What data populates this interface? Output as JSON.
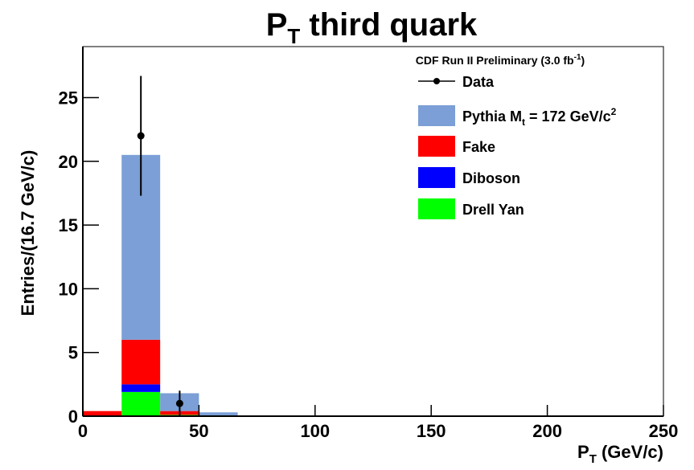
{
  "chart_data": {
    "type": "stacked-histogram",
    "title": {
      "main": "P",
      "sub": "T",
      "rest": " third quark"
    },
    "x_label": {
      "main": "P",
      "sub": "T",
      "rest": " (GeV/c)"
    },
    "y_label": "Entries/(16.7 GeV/c)",
    "legend_title": {
      "main": "CDF Run II Preliminary (3.0 fb",
      "sup": "-1",
      "rest": ")"
    },
    "bins": [
      0,
      16.7,
      33.3,
      50,
      66.7,
      83.3,
      100,
      116.7,
      133.3,
      150,
      166.7,
      183.3,
      200,
      216.7,
      233.3,
      250
    ],
    "series": [
      {
        "name": "Drell Yan",
        "color": "#00ff00",
        "values": [
          0,
          1.9,
          0.1,
          0,
          0,
          0,
          0,
          0,
          0,
          0,
          0,
          0,
          0,
          0,
          0
        ]
      },
      {
        "name": "Diboson",
        "color": "#0000ff",
        "values": [
          0,
          0.6,
          0,
          0,
          0,
          0,
          0,
          0,
          0,
          0,
          0,
          0,
          0,
          0,
          0
        ]
      },
      {
        "name": "Fake",
        "color": "#ff0000",
        "values": [
          0.4,
          3.5,
          0.3,
          0,
          0,
          0,
          0,
          0,
          0,
          0,
          0,
          0,
          0,
          0,
          0
        ]
      },
      {
        "name": "Pythia M",
        "name_sub": "t",
        "name_rest": " = 172 GeV/c",
        "name_sup": "2",
        "color": "#7b9fd6",
        "values": [
          0,
          14.5,
          1.4,
          0.3,
          0.05,
          0,
          0,
          0,
          0,
          0,
          0,
          0,
          0,
          0,
          0
        ]
      }
    ],
    "data": {
      "name": "Data",
      "color": "#000000",
      "x": [
        25,
        41.7
      ],
      "values": [
        22,
        1
      ],
      "errors": [
        4.7,
        1
      ]
    },
    "xlim": [
      0,
      250
    ],
    "xticks": [
      0,
      50,
      100,
      150,
      200,
      250
    ],
    "ylim": [
      0,
      29
    ],
    "yticks": [
      0,
      5,
      10,
      15,
      20,
      25
    ]
  }
}
